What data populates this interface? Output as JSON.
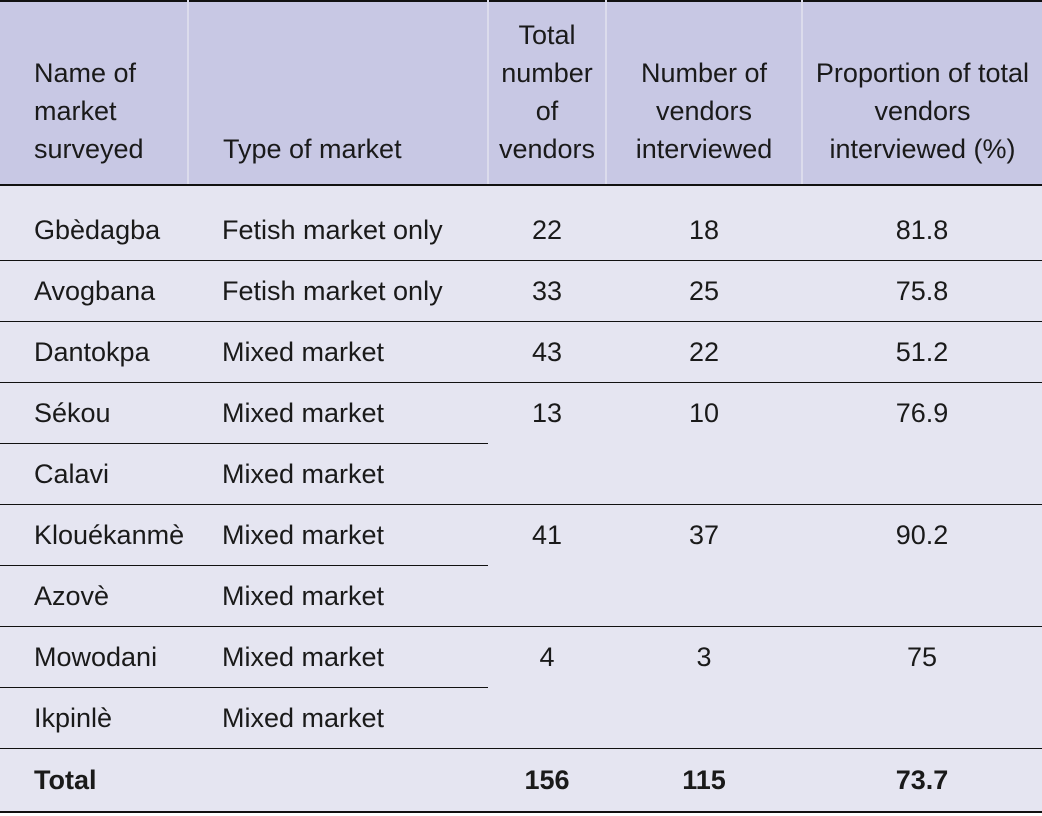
{
  "headers": {
    "name": "Name of market surveyed",
    "type": "Type of market",
    "total_vendors": "Total number of vendors",
    "interviewed": "Number of vendors interviewed",
    "proportion": "Proportion of total vendors interviewed (%)"
  },
  "rows": [
    {
      "name": "Gbèdagba",
      "type": "Fetish market only",
      "total": "22",
      "interviewed": "18",
      "proportion": "81.8"
    },
    {
      "name": "Avogbana",
      "type": "Fetish market only",
      "total": "33",
      "interviewed": "25",
      "proportion": "75.8"
    },
    {
      "name": "Dantokpa",
      "type": "Mixed market",
      "total": "43",
      "interviewed": "22",
      "proportion": "51.2"
    },
    {
      "name": "Sékou",
      "type": "Mixed market",
      "total": "13",
      "interviewed": "10",
      "proportion": "76.9"
    },
    {
      "name": "Calavi",
      "type": "Mixed market"
    },
    {
      "name": "Klouékanmè",
      "type": "Mixed market",
      "total": "41",
      "interviewed": "37",
      "proportion": "90.2"
    },
    {
      "name": "Azovè",
      "type": "Mixed market"
    },
    {
      "name": "Mowodani",
      "type": "Mixed market",
      "total": "4",
      "interviewed": "3",
      "proportion": "75"
    },
    {
      "name": "Ikpinlè",
      "type": "Mixed market"
    }
  ],
  "total_row": {
    "label": "Total",
    "total": "156",
    "interviewed": "115",
    "proportion": "73.7"
  }
}
